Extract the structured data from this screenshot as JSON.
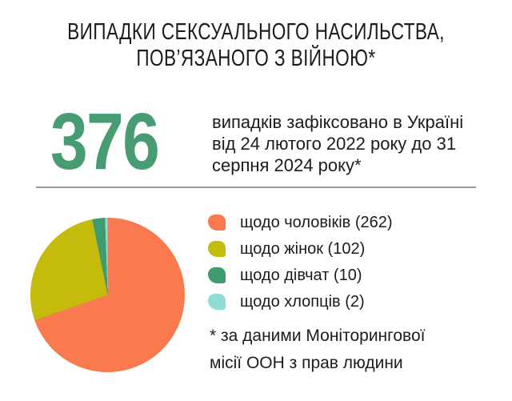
{
  "infographic": {
    "title": "ВИПАДКИ СЕКСУАЛЬНОГО НАСИЛЬСТВА,\nПОВ’ЯЗАНОГО З ВІЙНОЮ*",
    "stat": {
      "value": "376",
      "description": "випадків зафіксовано в Україні\nвід 24 лютого 2022 року до 31\nсерпня 2024 року*"
    },
    "footnote": "* за даними Моніторингової\nмісії ООН з прав людини"
  },
  "legend": {
    "items": [
      {
        "label": "щодо чоловіків (262)",
        "color": "#F97A4F"
      },
      {
        "label": "щодо жінок (102)",
        "color": "#C5BB0C"
      },
      {
        "label": "щодо дівчат (10)",
        "color": "#3F9B70"
      },
      {
        "label": "щодо хлопців (2)",
        "color": "#90DDD6"
      }
    ]
  },
  "chart_data": {
    "type": "pie",
    "title": "ВИПАДКИ СЕКСУАЛЬНОГО НАСИЛЬСТВА, ПОВ’ЯЗАНОГО З ВІЙНОЮ*",
    "labels": [
      "щодо чоловіків",
      "щодо жінок",
      "щодо дівчат",
      "щодо хлопців"
    ],
    "values": [
      262,
      102,
      10,
      2
    ],
    "total": 376,
    "colors": [
      "#F97A4F",
      "#C5BB0C",
      "#3F9B70",
      "#90DDD6"
    ],
    "start_angle_deg": 0,
    "direction": "clockwise",
    "legend_position": "right"
  },
  "colors": {
    "accent_green": "#479C72",
    "text": "#1C1C1C",
    "divider": "#9B9B9B",
    "background": "#FFFFFF"
  }
}
